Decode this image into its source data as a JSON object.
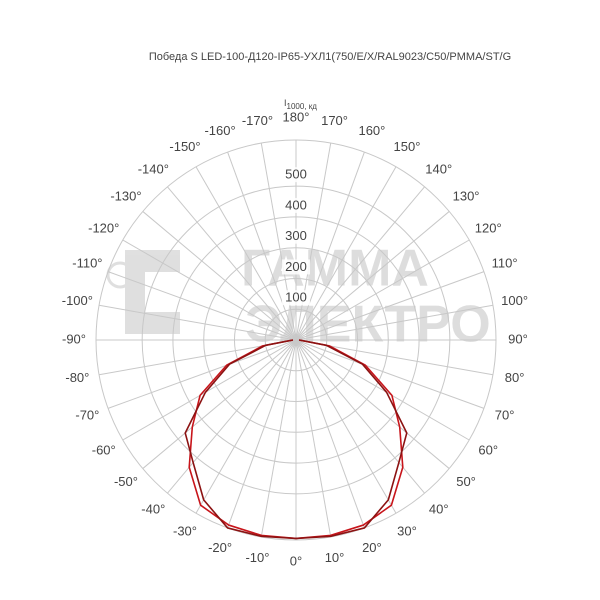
{
  "chart_data": {
    "type": "polar",
    "title": "Победа S LED-100-Д120-IP65-УХЛ1(750/E/X/RAL9023/C50/PMMA/ST/G",
    "r_label": "I",
    "r_label_sub": "1000, кд",
    "watermark": [
      "ГАММА",
      "ЭЛЕКТРО"
    ],
    "rlim": [
      0,
      650
    ],
    "rticks": [
      100,
      200,
      300,
      400,
      500
    ],
    "angle_ticks": [
      {
        "value": 0,
        "label": "0°"
      },
      {
        "value": 10,
        "label": "10°"
      },
      {
        "value": 20,
        "label": "20°"
      },
      {
        "value": 30,
        "label": "30°"
      },
      {
        "value": 40,
        "label": "40°"
      },
      {
        "value": 50,
        "label": "50°"
      },
      {
        "value": 60,
        "label": "60°"
      },
      {
        "value": 70,
        "label": "70°"
      },
      {
        "value": 80,
        "label": "80°"
      },
      {
        "value": 90,
        "label": "90°"
      },
      {
        "value": 100,
        "label": "100°"
      },
      {
        "value": 110,
        "label": "110°"
      },
      {
        "value": 120,
        "label": "120°"
      },
      {
        "value": 130,
        "label": "130°"
      },
      {
        "value": 140,
        "label": "140°"
      },
      {
        "value": 150,
        "label": "150°"
      },
      {
        "value": 160,
        "label": "160°"
      },
      {
        "value": 170,
        "label": "170°"
      },
      {
        "value": 180,
        "label": "180°"
      },
      {
        "value": -10,
        "label": "-10°"
      },
      {
        "value": -20,
        "label": "-20°"
      },
      {
        "value": -30,
        "label": "-30°"
      },
      {
        "value": -40,
        "label": "-40°"
      },
      {
        "value": -50,
        "label": "-50°"
      },
      {
        "value": -60,
        "label": "-60°"
      },
      {
        "value": -70,
        "label": "-70°"
      },
      {
        "value": -80,
        "label": "-80°"
      },
      {
        "value": -90,
        "label": "-90°"
      },
      {
        "value": -100,
        "label": "-100°"
      },
      {
        "value": -110,
        "label": "-110°"
      },
      {
        "value": -120,
        "label": "-120°"
      },
      {
        "value": -130,
        "label": "-130°"
      },
      {
        "value": -140,
        "label": "-140°"
      },
      {
        "value": -150,
        "label": "-150°"
      },
      {
        "value": -160,
        "label": "-160°"
      },
      {
        "value": -170,
        "label": "-170°"
      }
    ],
    "x": [
      -90,
      -80,
      -70,
      -60,
      -50,
      -40,
      -30,
      -20,
      -10,
      0,
      10,
      20,
      30,
      40,
      50,
      60,
      70,
      80,
      90
    ],
    "series": [
      {
        "color": "#c8151b",
        "values": [
          10,
          110,
          240,
          360,
          440,
          540,
          620,
          640,
          645,
          645,
          645,
          640,
          620,
          540,
          440,
          360,
          240,
          110,
          10
        ]
      },
      {
        "color": "#8c1212",
        "values": [
          10,
          100,
          230,
          340,
          470,
          520,
          600,
          650,
          648,
          645,
          648,
          650,
          600,
          520,
          470,
          340,
          230,
          100,
          10
        ]
      }
    ]
  }
}
